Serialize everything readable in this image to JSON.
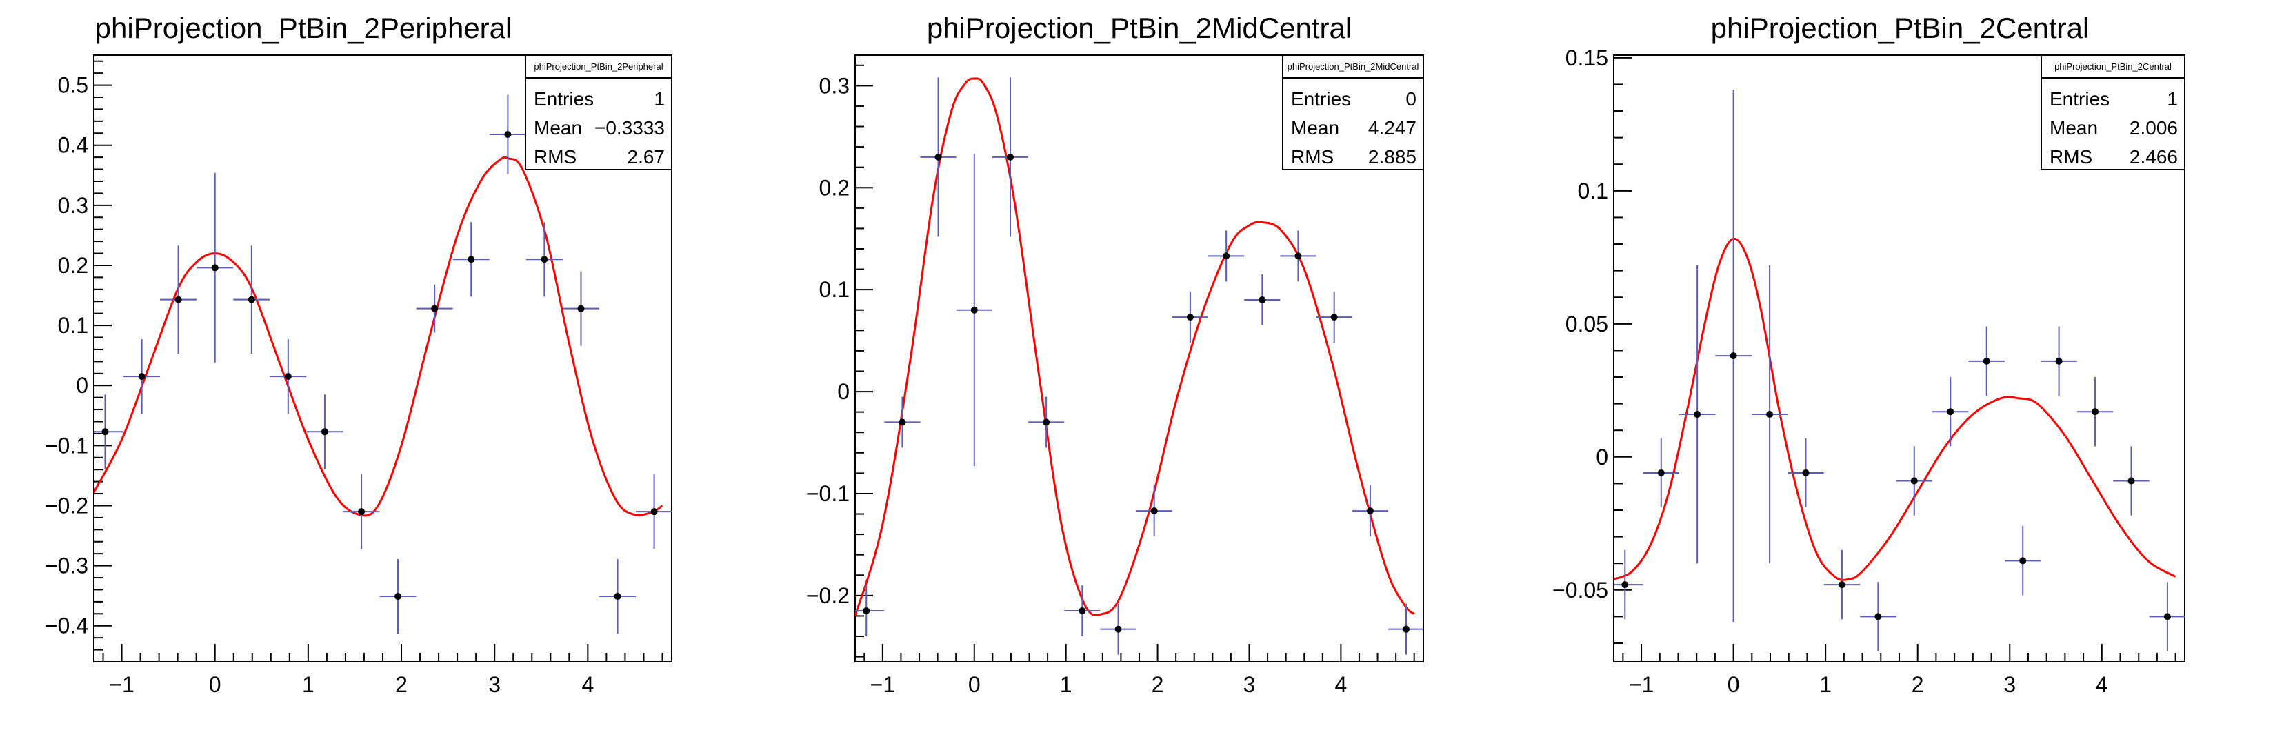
{
  "chart_data": [
    {
      "type": "scatter",
      "title": "phiProjection_PtBin_2Peripheral",
      "xlabel": "",
      "ylabel": "",
      "xlim": [
        -1.3,
        4.9
      ],
      "ylim": [
        -0.46,
        0.55
      ],
      "xticks": [
        -1,
        0,
        1,
        2,
        3,
        4
      ],
      "xtick_labels": [
        "−1",
        "0",
        "1",
        "2",
        "3",
        "4"
      ],
      "yticks": [
        -0.4,
        -0.3,
        -0.2,
        -0.1,
        0,
        0.1,
        0.2,
        0.3,
        0.4,
        0.5
      ],
      "ytick_labels": [
        "−0.4",
        "−0.3",
        "−0.2",
        "−0.1",
        "0",
        "0.1",
        "0.2",
        "0.3",
        "0.4",
        "0.5"
      ],
      "stats": {
        "name": "phiProjection_PtBin_2Peripheral",
        "rows": [
          {
            "label": "Entries",
            "value": "1"
          },
          {
            "label": "Mean",
            "value": "−0.3333"
          },
          {
            "label": "RMS",
            "value": "2.67"
          }
        ]
      },
      "points": [
        {
          "x": -1.178,
          "y": -0.077,
          "yerr": 0.062
        },
        {
          "x": -0.785,
          "y": 0.015,
          "yerr": 0.062
        },
        {
          "x": -0.393,
          "y": 0.143,
          "yerr": 0.09
        },
        {
          "x": 0.0,
          "y": 0.196,
          "yerr": 0.158
        },
        {
          "x": 0.393,
          "y": 0.143,
          "yerr": 0.09
        },
        {
          "x": 0.785,
          "y": 0.015,
          "yerr": 0.062
        },
        {
          "x": 1.178,
          "y": -0.077,
          "yerr": 0.062
        },
        {
          "x": 1.571,
          "y": -0.21,
          "yerr": 0.062
        },
        {
          "x": 1.963,
          "y": -0.351,
          "yerr": 0.062
        },
        {
          "x": 2.356,
          "y": 0.128,
          "yerr": 0.04
        },
        {
          "x": 2.749,
          "y": 0.21,
          "yerr": 0.062
        },
        {
          "x": 3.142,
          "y": 0.418,
          "yerr": 0.066
        },
        {
          "x": 3.534,
          "y": 0.21,
          "yerr": 0.062
        },
        {
          "x": 3.927,
          "y": 0.128,
          "yerr": 0.062
        },
        {
          "x": 4.32,
          "y": -0.351,
          "yerr": 0.062
        },
        {
          "x": 4.712,
          "y": -0.21,
          "yerr": 0.062
        }
      ],
      "xerr": 0.196,
      "fit": {
        "x": [
          -1.3,
          -1.0,
          -0.7,
          -0.4,
          -0.2,
          0.0,
          0.2,
          0.4,
          0.7,
          1.0,
          1.3,
          1.55,
          1.75,
          2.0,
          2.3,
          2.6,
          2.85,
          3.05,
          3.15,
          3.3,
          3.55,
          3.8,
          4.05,
          4.3,
          4.5,
          4.7,
          4.8
        ],
        "y": [
          -0.178,
          -0.09,
          0.035,
          0.16,
          0.205,
          0.22,
          0.205,
          0.16,
          0.035,
          -0.09,
          -0.185,
          -0.215,
          -0.2,
          -0.1,
          0.08,
          0.25,
          0.34,
          0.375,
          0.378,
          0.36,
          0.25,
          0.07,
          -0.09,
          -0.19,
          -0.215,
          -0.21,
          -0.2
        ]
      }
    },
    {
      "type": "scatter",
      "title": "phiProjection_PtBin_2MidCentral",
      "xlabel": "",
      "ylabel": "",
      "xlim": [
        -1.3,
        4.9
      ],
      "ylim": [
        -0.265,
        0.33
      ],
      "xticks": [
        -1,
        0,
        1,
        2,
        3,
        4
      ],
      "xtick_labels": [
        "−1",
        "0",
        "1",
        "2",
        "3",
        "4"
      ],
      "yticks": [
        -0.2,
        -0.1,
        0,
        0.1,
        0.2,
        0.3
      ],
      "ytick_labels": [
        "−0.2",
        "−0.1",
        "0",
        "0.1",
        "0.2",
        "0.3"
      ],
      "stats": {
        "name": "phiProjection_PtBin_2MidCentral",
        "rows": [
          {
            "label": "Entries",
            "value": "0"
          },
          {
            "label": "Mean",
            "value": "4.247"
          },
          {
            "label": "RMS",
            "value": "2.885"
          }
        ]
      },
      "points": [
        {
          "x": -1.178,
          "y": -0.215,
          "yerr": 0.025
        },
        {
          "x": -0.785,
          "y": -0.03,
          "yerr": 0.025
        },
        {
          "x": -0.393,
          "y": 0.23,
          "yerr": 0.078
        },
        {
          "x": 0.0,
          "y": 0.08,
          "yerr": 0.153
        },
        {
          "x": 0.393,
          "y": 0.23,
          "yerr": 0.078
        },
        {
          "x": 0.785,
          "y": -0.03,
          "yerr": 0.025
        },
        {
          "x": 1.178,
          "y": -0.215,
          "yerr": 0.025
        },
        {
          "x": 1.571,
          "y": -0.233,
          "yerr": 0.025
        },
        {
          "x": 1.963,
          "y": -0.117,
          "yerr": 0.025
        },
        {
          "x": 2.356,
          "y": 0.073,
          "yerr": 0.025
        },
        {
          "x": 2.749,
          "y": 0.133,
          "yerr": 0.025
        },
        {
          "x": 3.142,
          "y": 0.09,
          "yerr": 0.025
        },
        {
          "x": 3.534,
          "y": 0.133,
          "yerr": 0.025
        },
        {
          "x": 3.927,
          "y": 0.073,
          "yerr": 0.025
        },
        {
          "x": 4.32,
          "y": -0.117,
          "yerr": 0.025
        },
        {
          "x": 4.712,
          "y": -0.233,
          "yerr": 0.025
        }
      ],
      "xerr": 0.196,
      "fit": {
        "x": [
          -1.3,
          -1.0,
          -0.7,
          -0.45,
          -0.25,
          -0.1,
          0.0,
          0.1,
          0.25,
          0.45,
          0.7,
          0.95,
          1.2,
          1.4,
          1.6,
          1.9,
          2.2,
          2.5,
          2.8,
          3.0,
          3.15,
          3.35,
          3.6,
          3.9,
          4.2,
          4.5,
          4.7,
          4.8
        ],
        "y": [
          -0.22,
          -0.13,
          0.03,
          0.19,
          0.275,
          0.302,
          0.307,
          0.302,
          0.27,
          0.18,
          0.02,
          -0.13,
          -0.208,
          -0.218,
          -0.2,
          -0.12,
          -0.01,
          0.08,
          0.145,
          0.163,
          0.166,
          0.158,
          0.12,
          0.03,
          -0.08,
          -0.175,
          -0.21,
          -0.218
        ]
      }
    },
    {
      "type": "scatter",
      "title": "phiProjection_PtBin_2Central",
      "xlabel": "",
      "ylabel": "",
      "xlim": [
        -1.3,
        4.9
      ],
      "ylim": [
        -0.077,
        0.151
      ],
      "xticks": [
        -1,
        0,
        1,
        2,
        3,
        4
      ],
      "xtick_labels": [
        "−1",
        "0",
        "1",
        "2",
        "3",
        "4"
      ],
      "yticks": [
        -0.05,
        0,
        0.05,
        0.1,
        0.15
      ],
      "ytick_labels": [
        "−0.05",
        "0",
        "0.05",
        "0.1",
        "0.15"
      ],
      "stats": {
        "name": "phiProjection_PtBin_2Central",
        "rows": [
          {
            "label": "Entries",
            "value": "1"
          },
          {
            "label": "Mean",
            "value": "2.006"
          },
          {
            "label": "RMS",
            "value": "2.466"
          }
        ]
      },
      "points": [
        {
          "x": -1.178,
          "y": -0.048,
          "yerr": 0.013
        },
        {
          "x": -0.785,
          "y": -0.006,
          "yerr": 0.013
        },
        {
          "x": -0.393,
          "y": 0.016,
          "yerr": 0.056
        },
        {
          "x": 0.0,
          "y": 0.038,
          "yerr": 0.1
        },
        {
          "x": 0.393,
          "y": 0.016,
          "yerr": 0.056
        },
        {
          "x": 0.785,
          "y": -0.006,
          "yerr": 0.013
        },
        {
          "x": 1.178,
          "y": -0.048,
          "yerr": 0.013
        },
        {
          "x": 1.571,
          "y": -0.06,
          "yerr": 0.013
        },
        {
          "x": 1.963,
          "y": -0.009,
          "yerr": 0.013
        },
        {
          "x": 2.356,
          "y": 0.017,
          "yerr": 0.013
        },
        {
          "x": 2.749,
          "y": 0.036,
          "yerr": 0.013
        },
        {
          "x": 3.142,
          "y": -0.039,
          "yerr": 0.013
        },
        {
          "x": 3.534,
          "y": 0.036,
          "yerr": 0.013
        },
        {
          "x": 3.927,
          "y": 0.017,
          "yerr": 0.013
        },
        {
          "x": 4.32,
          "y": -0.009,
          "yerr": 0.013
        },
        {
          "x": 4.712,
          "y": -0.06,
          "yerr": 0.013
        }
      ],
      "xerr": 0.196,
      "fit": {
        "x": [
          -1.3,
          -1.1,
          -0.9,
          -0.7,
          -0.5,
          -0.3,
          -0.15,
          0.0,
          0.15,
          0.3,
          0.5,
          0.7,
          0.9,
          1.1,
          1.25,
          1.4,
          1.7,
          2.0,
          2.3,
          2.6,
          2.9,
          3.1,
          3.3,
          3.6,
          3.9,
          4.2,
          4.5,
          4.8
        ],
        "y": [
          -0.046,
          -0.043,
          -0.033,
          -0.013,
          0.018,
          0.052,
          0.073,
          0.082,
          0.075,
          0.055,
          0.017,
          -0.014,
          -0.036,
          -0.045,
          -0.046,
          -0.043,
          -0.03,
          -0.013,
          0.004,
          0.016,
          0.022,
          0.022,
          0.02,
          0.008,
          -0.009,
          -0.026,
          -0.039,
          -0.045
        ]
      }
    }
  ]
}
